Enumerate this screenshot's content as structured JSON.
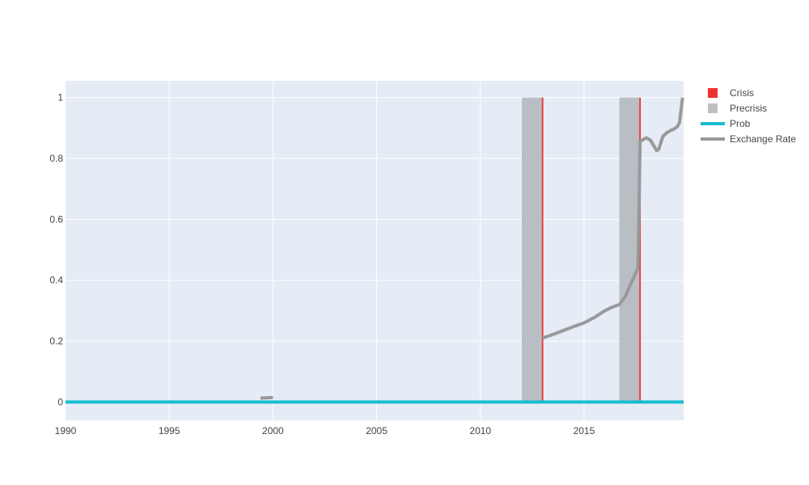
{
  "chart_data": {
    "type": "bar",
    "xlim": [
      1990,
      2019.8
    ],
    "ylim": [
      -0.06,
      1.055
    ],
    "x_ticks": [
      1990,
      1995,
      2000,
      2005,
      2010,
      2015
    ],
    "y_ticks": [
      0,
      0.2,
      0.4,
      0.6,
      0.8,
      1
    ],
    "y_tick_labels": [
      "0",
      "0.2",
      "0.4",
      "0.6",
      "0.8",
      "1"
    ],
    "grid": true,
    "legend_position": "right",
    "background": "#e5ecf6",
    "legend": [
      {
        "name": "Crisis",
        "symbol": "square",
        "color": "#f03030"
      },
      {
        "name": "Precrisis",
        "symbol": "square",
        "color": "#c0c0c0"
      },
      {
        "name": "Prob",
        "symbol": "line",
        "color": "#17becf"
      },
      {
        "name": "Exchange Rate",
        "symbol": "line",
        "color": "#999999"
      }
    ],
    "series": [
      {
        "name": "Precrisis",
        "type": "bar",
        "color": "#b9bec4",
        "bars": [
          {
            "start": 2012.0,
            "end": 2013.0,
            "value": 1
          },
          {
            "start": 2016.7,
            "end": 2017.7,
            "value": 1
          }
        ]
      },
      {
        "name": "Crisis",
        "type": "bar",
        "color": "#f03030",
        "bars": [
          {
            "x": 2013.0,
            "value": 1
          },
          {
            "x": 2017.7,
            "value": 1
          }
        ]
      },
      {
        "name": "Prob",
        "type": "line",
        "color": "#17becf",
        "x": [
          1990,
          2019.8
        ],
        "y": [
          0,
          0
        ]
      },
      {
        "name": "Exchange Rate",
        "type": "line",
        "color": "#999999",
        "segments": [
          {
            "x": [
              1999.4,
              2000.0
            ],
            "y": [
              0.013,
              0.015
            ]
          },
          {
            "x": [
              2013.0,
              2013.5,
              2014.0,
              2014.5,
              2015.0,
              2015.5,
              2016.0,
              2016.3,
              2016.7,
              2017.0,
              2017.2,
              2017.4,
              2017.6,
              2017.7,
              2017.8,
              2018.0,
              2018.2,
              2018.5,
              2018.6,
              2018.8,
              2019.0,
              2019.2,
              2019.3,
              2019.5,
              2019.6,
              2019.75
            ],
            "y": [
              0.21,
              0.222,
              0.235,
              0.248,
              0.26,
              0.278,
              0.3,
              0.31,
              0.32,
              0.348,
              0.38,
              0.41,
              0.44,
              0.855,
              0.86,
              0.868,
              0.86,
              0.826,
              0.83,
              0.873,
              0.885,
              0.893,
              0.895,
              0.905,
              0.918,
              1.0
            ]
          }
        ]
      }
    ]
  }
}
